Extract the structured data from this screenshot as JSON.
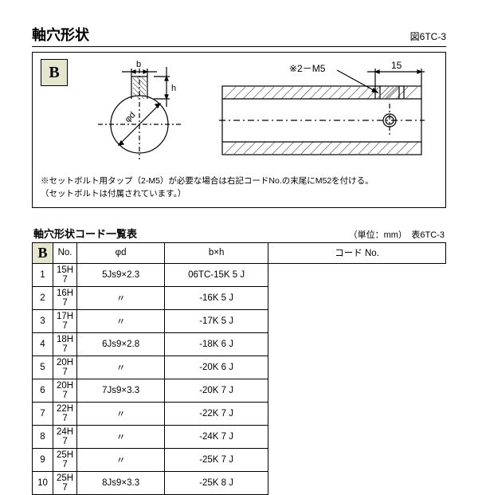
{
  "title": "軸穴形状",
  "figure_no": "図6TC-3",
  "badge": "B",
  "diagram": {
    "left": {
      "labels": {
        "b": "b",
        "h": "h",
        "phi_d": "φd"
      },
      "colors": {
        "line": "#000000",
        "hatch": "#6a6a6a",
        "bg": "#ffffff"
      }
    },
    "right": {
      "dim_label": "15",
      "callout": "※2－M5",
      "colors": {
        "line": "#000000",
        "hatch": "#6a6a6a"
      }
    }
  },
  "note_lines": [
    "※セットボルト用タップ（2-M5）が必要な場合は右記コードNo.の末尾にM52を付ける。",
    "（セットボルトは付属されています。）"
  ],
  "table": {
    "title": "軸穴形状コード一覧表",
    "unit_label": "（単位：mm）　表6TC-3",
    "side_badge": "B",
    "headers": {
      "no": "No.",
      "d": "φd",
      "bh": "b×h",
      "code": "コード No."
    },
    "rows": [
      {
        "no": "1",
        "d": "15H 7",
        "bh": "5Js9×2.3",
        "code": "06TC-15K 5 J"
      },
      {
        "no": "2",
        "d": "16H 7",
        "bh": "〃",
        "code": "-16K 5 J"
      },
      {
        "no": "3",
        "d": "17H 7",
        "bh": "〃",
        "code": "-17K 5 J"
      },
      {
        "no": "4",
        "d": "18H 7",
        "bh": "6Js9×2.8",
        "code": "-18K 6 J"
      },
      {
        "no": "5",
        "d": "20H 7",
        "bh": "〃",
        "code": "-20K 6 J"
      },
      {
        "no": "6",
        "d": "20H 7",
        "bh": "7Js9×3.3",
        "code": "-20K 7 J"
      },
      {
        "no": "7",
        "d": "22H 7",
        "bh": "〃",
        "code": "-22K 7 J"
      },
      {
        "no": "8",
        "d": "24H 7",
        "bh": "〃",
        "code": "-24K 7 J"
      },
      {
        "no": "9",
        "d": "25H 7",
        "bh": "〃",
        "code": "-25K 7 J"
      },
      {
        "no": "10",
        "d": "25H 7",
        "bh": "8Js9×3.3",
        "code": "-25K 8 J"
      }
    ]
  }
}
